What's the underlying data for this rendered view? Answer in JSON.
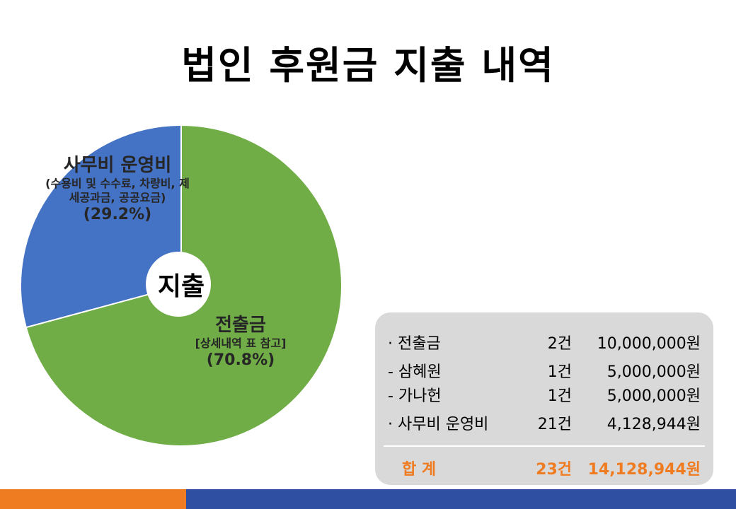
{
  "title": "법인 후원금 지출 내역",
  "center_label": "지출",
  "chart_data": {
    "type": "pie",
    "title": "",
    "slices": [
      {
        "label": "사무비 운영비",
        "detail_line1": "(수용비 및 수수료, 차량비, 제",
        "detail_line2": "세공과금, 공공요금)",
        "value": 29.2,
        "percent_label": "(29.2%)",
        "color": "#4472c4"
      },
      {
        "label": "전출금",
        "detail_line1": "[상세내역 표 참고]",
        "value": 70.8,
        "percent_label": "(70.8%)",
        "color": "#70ad47"
      }
    ],
    "start_angle": 0,
    "direction": "counterclockwise",
    "donut_hole": true
  },
  "summary": {
    "rows": [
      {
        "label": "· 전출금",
        "count": "2건",
        "amount": "10,000,000원"
      },
      {
        "label": " - 삼혜원",
        "count": "1건",
        "amount": "5,000,000원"
      },
      {
        "label": " - 가나헌",
        "count": "1건",
        "amount": "5,000,000원"
      },
      {
        "label": "· 사무비 운영비",
        "count": "21건",
        "amount": "4,128,944원"
      }
    ],
    "total": {
      "label": "합  계",
      "count": "23건",
      "amount": "14,128,944원"
    },
    "total_color": "#f07c21"
  },
  "footer": {
    "left_color": "#f07c21",
    "right_color": "#2f4fa2"
  }
}
